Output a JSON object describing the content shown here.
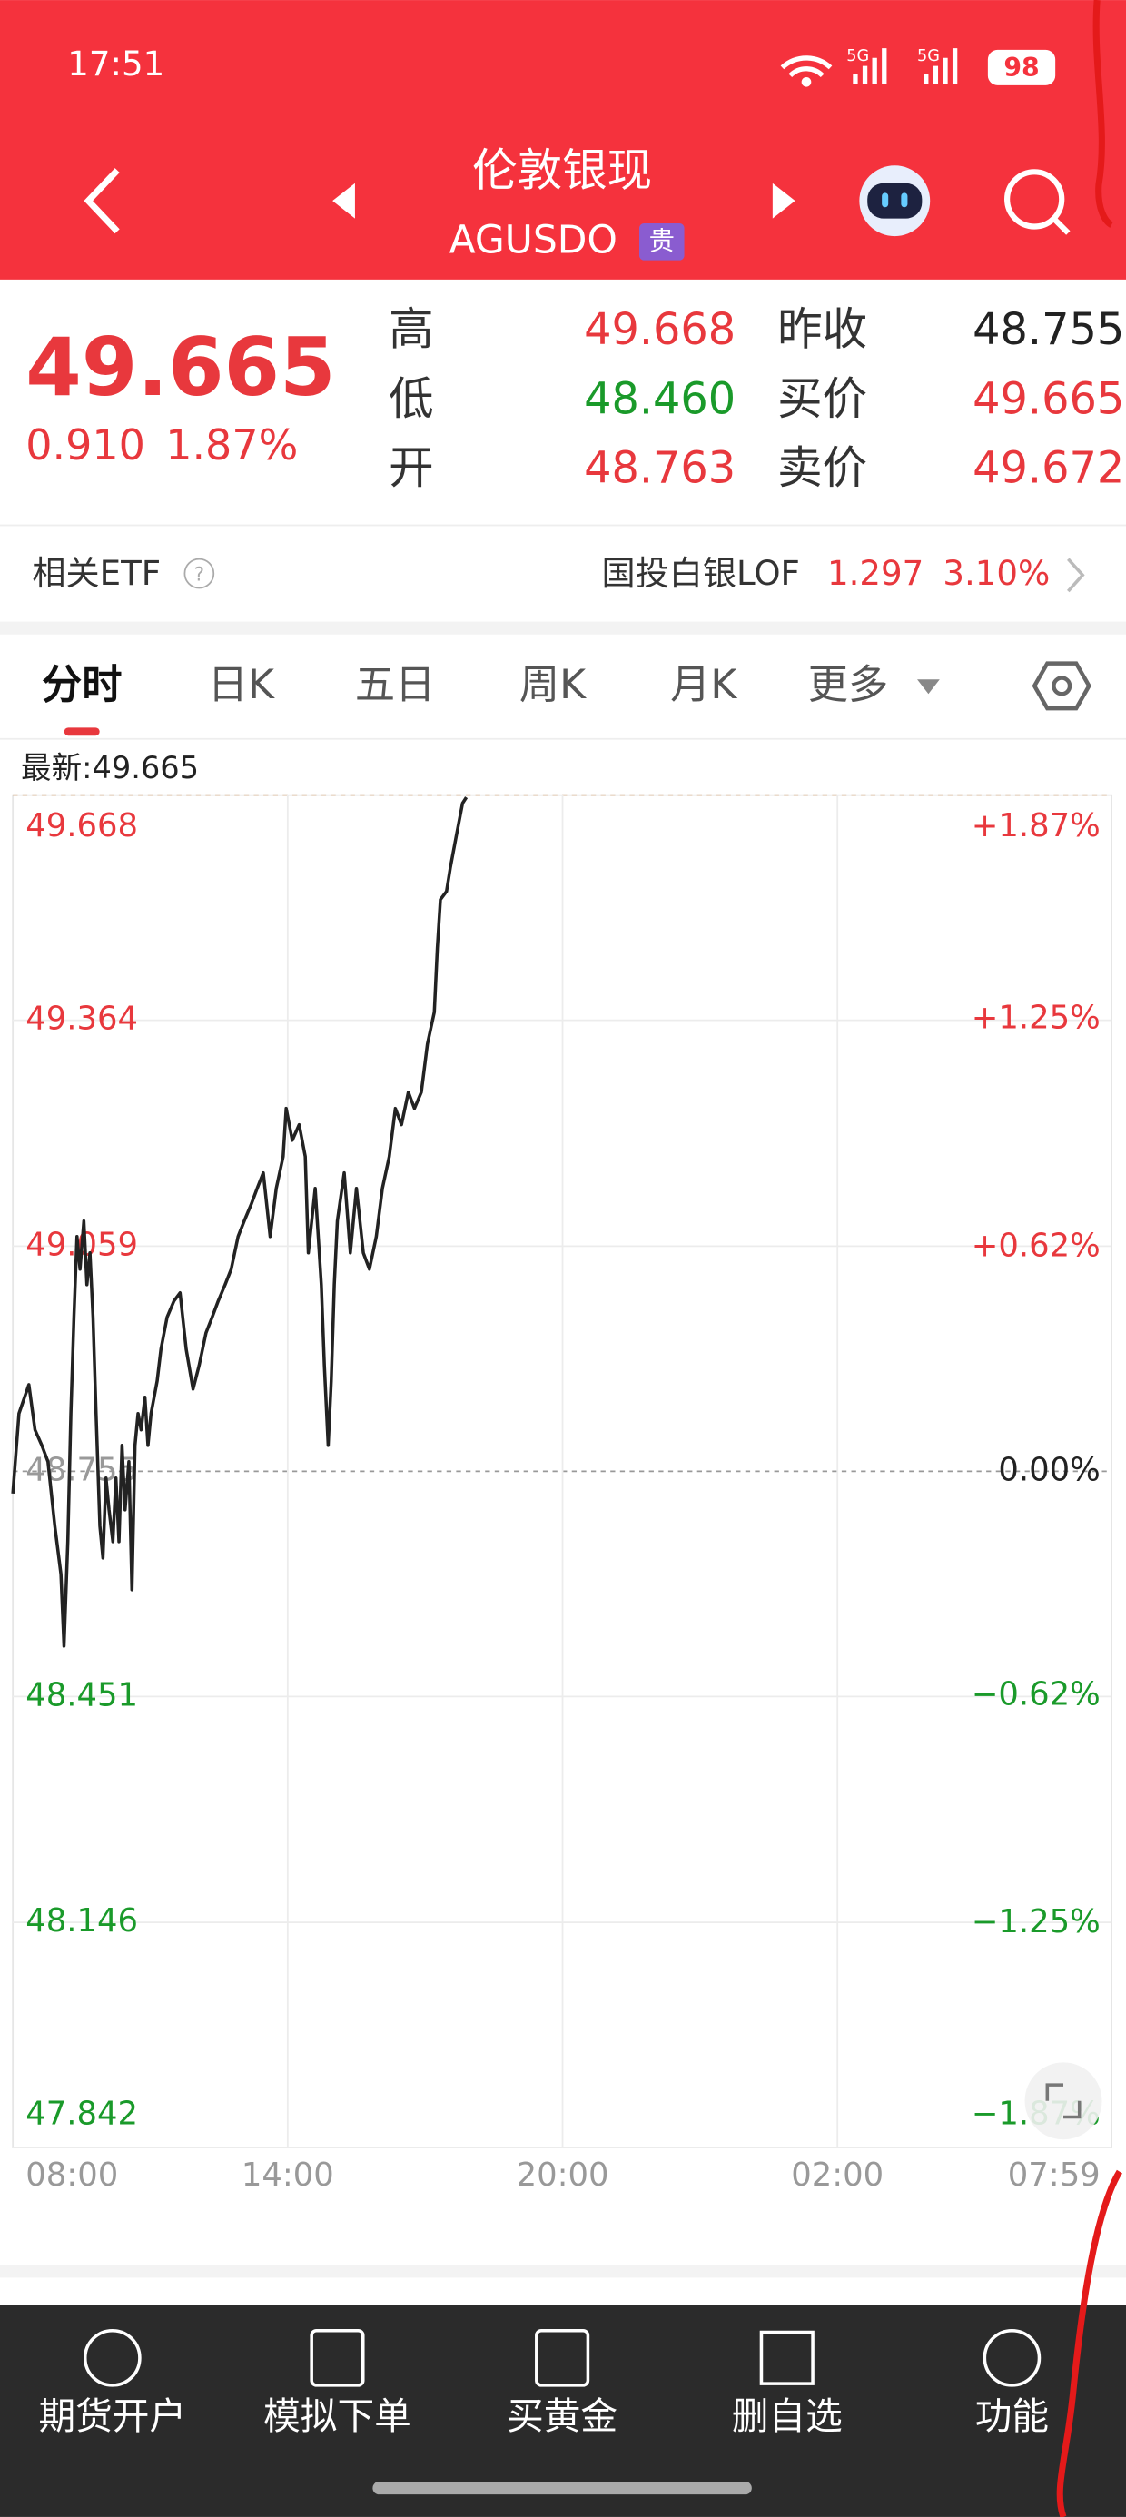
{
  "status_bar": {
    "time": "17:51",
    "network_1": "5G",
    "network_2": "5G",
    "battery": "98"
  },
  "header": {
    "title": "伦敦银现",
    "code": "AGUSDO",
    "badge": "贵"
  },
  "quote": {
    "price": "49.665",
    "change": "0.910",
    "change_pct": "1.87%",
    "stats": [
      {
        "label": "高",
        "value": "49.668"
      },
      {
        "label": "低",
        "value": "48.460"
      },
      {
        "label": "开",
        "value": "48.763"
      },
      {
        "label": "昨收",
        "value": "48.755"
      },
      {
        "label": "买价",
        "value": "49.665"
      },
      {
        "label": "卖价",
        "value": "49.672"
      }
    ]
  },
  "etf": {
    "label": "相关ETF",
    "help": "?",
    "name": "国投白银LOF",
    "price": "1.297",
    "change_pct": "3.10%"
  },
  "tabs": [
    "分时",
    "日K",
    "五日",
    "周K",
    "月K",
    "更多"
  ],
  "chart_data": {
    "type": "line",
    "latest_label": "最新:49.665",
    "color": "#222222",
    "x": [
      0,
      8,
      21,
      29,
      38,
      46,
      55,
      63,
      67,
      72,
      76,
      80,
      84,
      88,
      93,
      97,
      101,
      105,
      109,
      114,
      118,
      122,
      126,
      131,
      135,
      139,
      143,
      147,
      152,
      156,
      160,
      164,
      168,
      173,
      177,
      181,
      185,
      189,
      194,
      202,
      211,
      219,
      227,
      236,
      244,
      253,
      261,
      269,
      278,
      286,
      295,
      303,
      312,
      320,
      328,
      337,
      345,
      354,
      358,
      366,
      375,
      383,
      387,
      396,
      404,
      408,
      413,
      417,
      421,
      425,
      434,
      442,
      450,
      459,
      467,
      476,
      484,
      493,
      501,
      509,
      518,
      526,
      535,
      543,
      552,
      556,
      560,
      568,
      573,
      581,
      589,
      594
    ],
    "values": [
      48.725,
      48.833,
      48.872,
      48.811,
      48.79,
      48.768,
      48.681,
      48.616,
      48.519,
      48.66,
      48.833,
      48.963,
      49.072,
      49.028,
      49.093,
      49.007,
      49.05,
      48.963,
      48.833,
      48.681,
      48.638,
      48.746,
      48.703,
      48.66,
      48.746,
      48.66,
      48.79,
      48.703,
      48.768,
      48.595,
      48.79,
      48.833,
      48.811,
      48.855,
      48.79,
      48.833,
      48.855,
      48.877,
      48.92,
      48.963,
      48.985,
      48.996,
      48.92,
      48.866,
      48.898,
      48.942,
      48.963,
      48.985,
      49.007,
      49.028,
      49.072,
      49.093,
      49.115,
      49.137,
      49.158,
      49.072,
      49.137,
      49.18,
      49.245,
      49.202,
      49.223,
      49.18,
      49.05,
      49.137,
      49.007,
      48.898,
      48.79,
      48.877,
      49.007,
      49.093,
      49.158,
      49.05,
      49.137,
      49.05,
      49.028,
      49.072,
      49.137,
      49.18,
      49.245,
      49.223,
      49.267,
      49.245,
      49.267,
      49.332,
      49.375,
      49.462,
      49.527,
      49.538,
      49.57,
      49.614,
      49.657,
      49.665
    ],
    "xlim": [
      0,
      1439
    ],
    "xticks": [
      {
        "value": 0,
        "label": "08:00"
      },
      {
        "value": 360,
        "label": "14:00"
      },
      {
        "value": 720,
        "label": "20:00"
      },
      {
        "value": 1080,
        "label": "02:00"
      },
      {
        "value": 1439,
        "label": "07:59"
      }
    ],
    "ylim": [
      47.842,
      49.668
    ],
    "yticks": [
      49.668,
      49.364,
      49.059,
      48.755,
      48.451,
      48.146,
      47.842
    ],
    "y2lim": [
      -1.87,
      1.87
    ],
    "y2ticks": [
      {
        "value": 1.87,
        "label": "+1.87%"
      },
      {
        "value": 1.25,
        "label": "+1.25%"
      },
      {
        "value": 0.62,
        "label": "+0.62%"
      },
      {
        "value": 0,
        "label": "0.00%"
      },
      {
        "value": -0.62,
        "label": "−0.62%"
      },
      {
        "value": -1.25,
        "label": "−1.25%"
      },
      {
        "value": -1.87,
        "label": "−1.87%"
      }
    ],
    "grid": true
  },
  "bottom_nav": [
    "期货开户",
    "模拟下单",
    "买黄金",
    "删自选",
    "功能"
  ]
}
